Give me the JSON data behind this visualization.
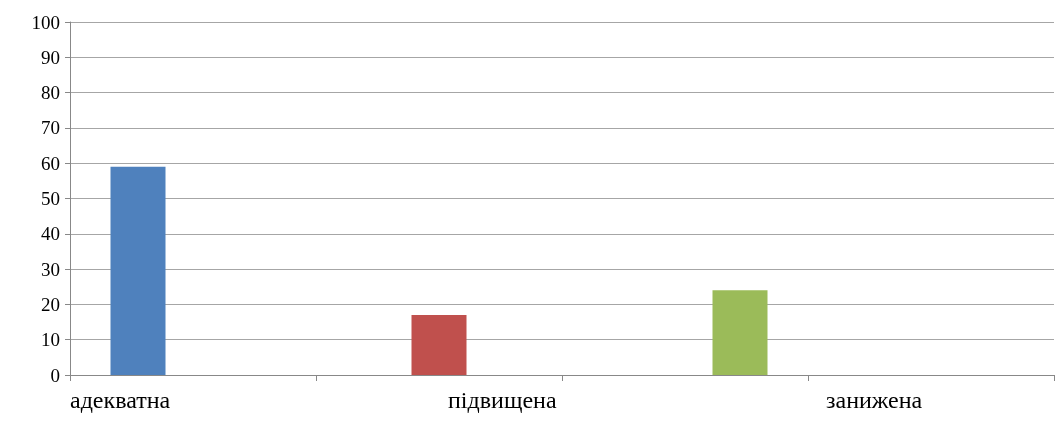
{
  "chart_data": {
    "type": "bar",
    "categories": [
      null,
      null,
      null,
      null
    ],
    "series": [
      {
        "color": "#4f81bd",
        "values": [
          59,
          null,
          null,
          null
        ]
      },
      {
        "color": "#c0504d",
        "values": [
          null,
          17,
          null,
          null
        ]
      },
      {
        "color": "#9bbb59",
        "values": [
          null,
          null,
          24,
          null
        ]
      }
    ],
    "ylim": [
      0,
      100
    ],
    "yticks": [
      0,
      10,
      20,
      30,
      40,
      50,
      60,
      70,
      80,
      90,
      100
    ],
    "grid": "y",
    "annotations": [
      "адекватна",
      "підвищена",
      "занижена"
    ]
  }
}
